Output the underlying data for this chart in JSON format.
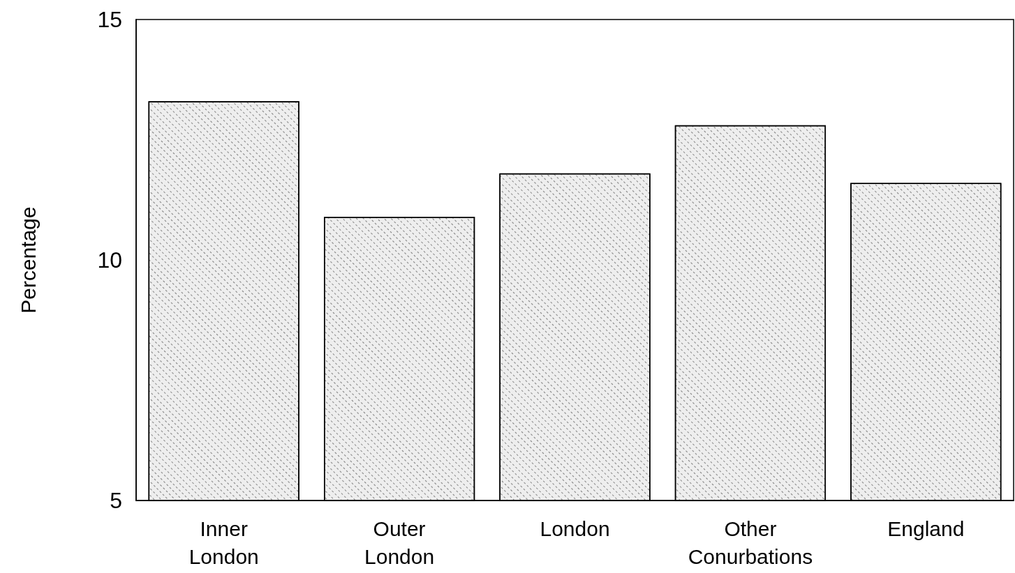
{
  "chart_data": {
    "type": "bar",
    "ylabel": "Percentage",
    "categories": [
      "Inner\nLondon",
      "Outer\nLondon",
      "London",
      "Other\nConurbations",
      "England"
    ],
    "values": [
      13.3,
      10.9,
      11.8,
      12.8,
      11.6
    ],
    "color": "#eeeeee",
    "ylim": [
      5,
      15
    ],
    "yticks": [
      5,
      10,
      15
    ],
    "grid": false
  }
}
